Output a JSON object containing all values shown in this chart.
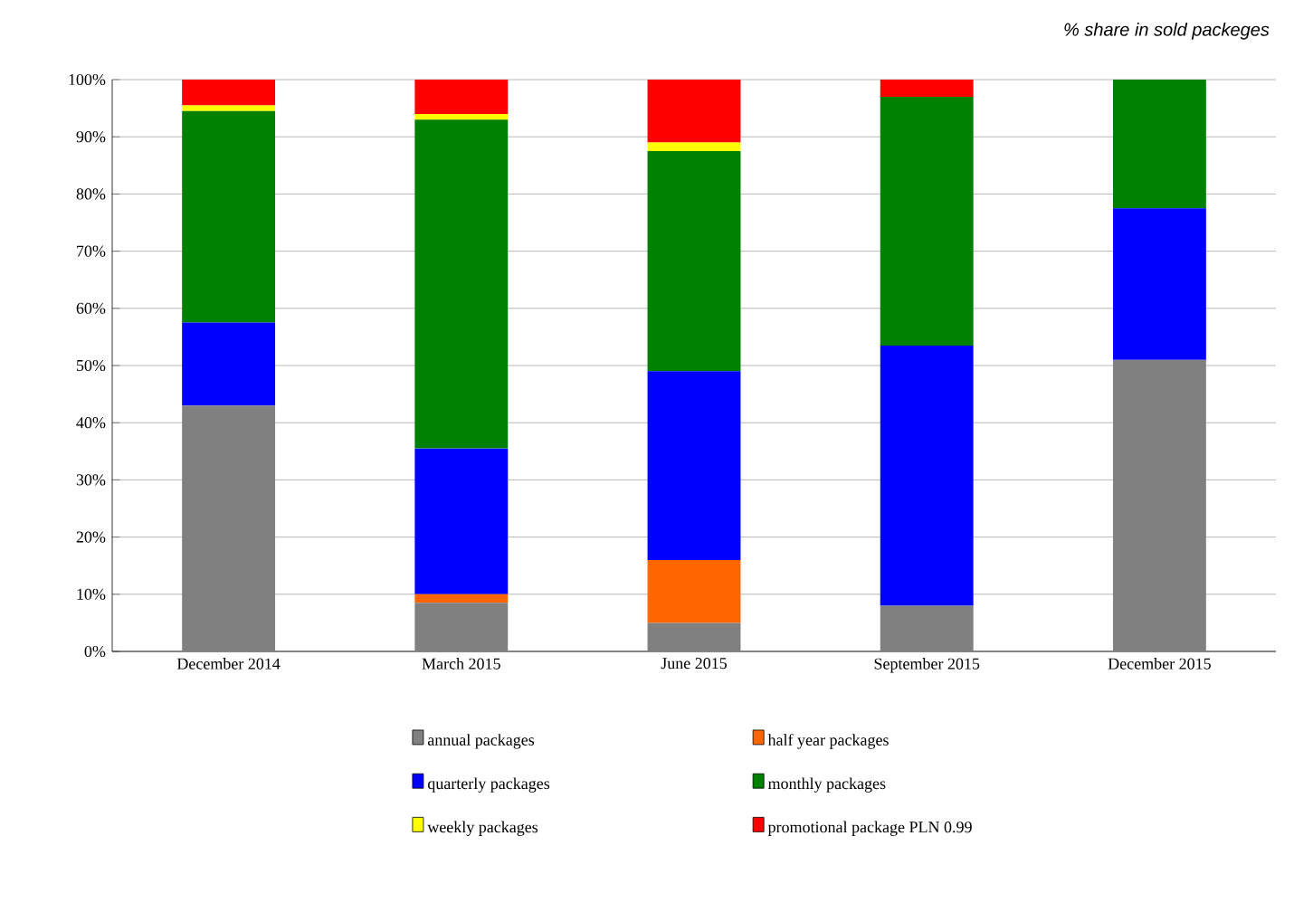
{
  "chart_data": {
    "type": "bar",
    "stacked": true,
    "title": "% share in sold packeges",
    "categories": [
      "December 2014",
      "March 2015",
      "June 2015",
      "September 2015",
      "December 2015"
    ],
    "series": [
      {
        "name": "annual packages",
        "color": "#808080",
        "values": [
          43,
          8.5,
          5,
          8,
          51
        ]
      },
      {
        "name": "half year packages",
        "color": "#ff6600",
        "values": [
          0,
          1.5,
          11,
          0,
          0
        ]
      },
      {
        "name": "quarterly packages",
        "color": "#0000ff",
        "values": [
          14.5,
          25.5,
          33,
          45.5,
          26.5
        ]
      },
      {
        "name": "monthly packages",
        "color": "#008000",
        "values": [
          37,
          57.5,
          38.5,
          43.5,
          22.5
        ]
      },
      {
        "name": "weekly packages",
        "color": "#ffff00",
        "values": [
          1,
          1,
          1.5,
          0,
          0
        ]
      },
      {
        "name": "promotional package PLN 0.99",
        "color": "#ff0000",
        "values": [
          4.5,
          6,
          11,
          3,
          0
        ]
      }
    ],
    "ylim": [
      0,
      100
    ],
    "yticks": [
      {
        "value": 0,
        "label": "0%"
      },
      {
        "value": 10,
        "label": "10%"
      },
      {
        "value": 20,
        "label": "20%"
      },
      {
        "value": 30,
        "label": "30%"
      },
      {
        "value": 40,
        "label": "40%"
      },
      {
        "value": 50,
        "label": "50%"
      },
      {
        "value": 60,
        "label": "60%"
      },
      {
        "value": 70,
        "label": "70%"
      },
      {
        "value": 80,
        "label": "80%"
      },
      {
        "value": 90,
        "label": "90%"
      },
      {
        "value": 100,
        "label": "100%"
      }
    ],
    "grid": "y",
    "legend": "bottom"
  }
}
